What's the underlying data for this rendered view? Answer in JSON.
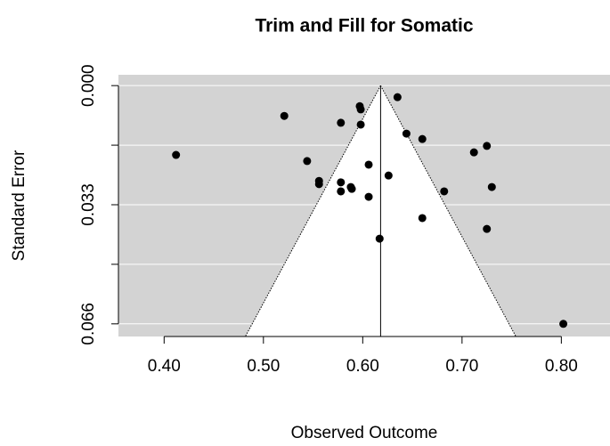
{
  "chart_data": {
    "type": "funnel",
    "title": "Trim and Fill for Somatic",
    "xlabel": "Observed Outcome",
    "ylabel": "Standard Error",
    "xlim": [
      0.354,
      0.849
    ],
    "xticks": [
      {
        "value": 0.4,
        "label": "0.40"
      },
      {
        "value": 0.5,
        "label": "0.50"
      },
      {
        "value": 0.6,
        "label": "0.60"
      },
      {
        "value": 0.7,
        "label": "0.70"
      },
      {
        "value": 0.8,
        "label": "0.80"
      }
    ],
    "ylim": [
      -0.003,
      0.0695
    ],
    "y_reversed": true,
    "yticks": [
      {
        "value": 0,
        "label": "0.000"
      },
      {
        "value": 0.0165,
        "label": null
      },
      {
        "value": 0.033,
        "label": "0.033"
      },
      {
        "value": 0.0495,
        "label": null
      },
      {
        "value": 0.066,
        "label": "0.066"
      }
    ],
    "grid": true,
    "panel_color": "#d3d3d3",
    "color": "#000000",
    "estimate": 0.618,
    "funnel_z": 1.96,
    "x": [
      0.412,
      0.521,
      0.544,
      0.556,
      0.556,
      0.578,
      0.578,
      0.578,
      0.588,
      0.589,
      0.597,
      0.598,
      0.598,
      0.606,
      0.606,
      0.617,
      0.626,
      0.635,
      0.644,
      0.66,
      0.66,
      0.682,
      0.712,
      0.725,
      0.73,
      0.725,
      0.802
    ],
    "values": [
      0.0192,
      0.0084,
      0.0209,
      0.0264,
      0.0273,
      0.0103,
      0.0268,
      0.0293,
      0.0281,
      0.0286,
      0.0057,
      0.0066,
      0.0108,
      0.0219,
      0.0308,
      0.0424,
      0.0249,
      0.0032,
      0.0133,
      0.0148,
      0.0367,
      0.0293,
      0.0185,
      0.0167,
      0.0281,
      0.0397,
      0.066
    ]
  }
}
